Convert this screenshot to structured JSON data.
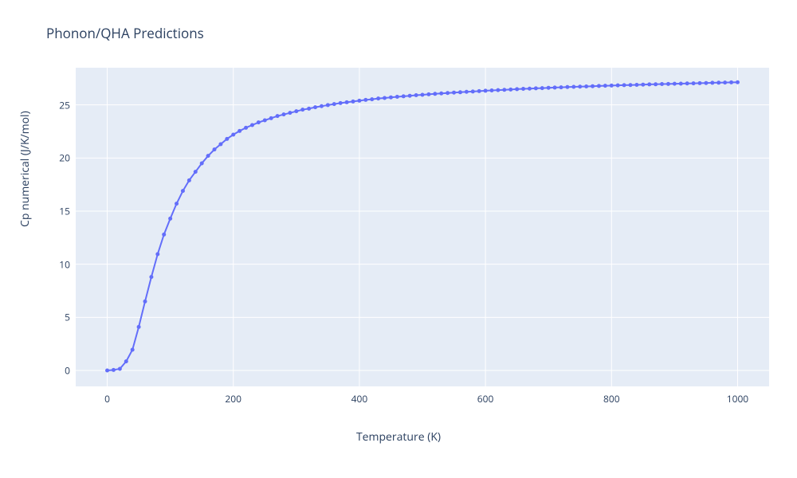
{
  "chart": {
    "type": "line",
    "title": "Phonon/QHA Predictions",
    "title_fontsize": 17,
    "title_color": "#2a3f5f",
    "background_color": "#ffffff",
    "plot_background_color": "#e5ecf6",
    "grid_color": "#ffffff",
    "xlabel": "Temperature (K)",
    "ylabel": "Cp numerical (J/K/mol)",
    "label_fontsize": 14,
    "label_color": "#2a3f5f",
    "tick_fontsize": 12,
    "tick_color": "#2a3f5f",
    "xlim": [
      -50,
      1050
    ],
    "ylim": [
      -1.5,
      28.5
    ],
    "xticks": [
      0,
      200,
      400,
      600,
      800,
      1000
    ],
    "yticks": [
      0,
      5,
      10,
      15,
      20,
      25
    ],
    "line_color": "#636efa",
    "line_width": 2,
    "marker_style": "circle",
    "marker_size": 5,
    "marker_color": "#636efa",
    "x": [
      0,
      10,
      20,
      30,
      40,
      50,
      60,
      70,
      80,
      90,
      100,
      110,
      120,
      130,
      140,
      150,
      160,
      170,
      180,
      190,
      200,
      210,
      220,
      230,
      240,
      250,
      260,
      270,
      280,
      290,
      300,
      310,
      320,
      330,
      340,
      350,
      360,
      370,
      380,
      390,
      400,
      410,
      420,
      430,
      440,
      450,
      460,
      470,
      480,
      490,
      500,
      510,
      520,
      530,
      540,
      550,
      560,
      570,
      580,
      590,
      600,
      610,
      620,
      630,
      640,
      650,
      660,
      670,
      680,
      690,
      700,
      710,
      720,
      730,
      740,
      750,
      760,
      770,
      780,
      790,
      800,
      810,
      820,
      830,
      840,
      850,
      860,
      870,
      880,
      890,
      900,
      910,
      920,
      930,
      940,
      950,
      960,
      970,
      980,
      990,
      1000
    ],
    "y": [
      0,
      0.05,
      0.15,
      0.85,
      1.95,
      4.1,
      6.5,
      8.8,
      10.95,
      12.8,
      14.3,
      15.7,
      16.9,
      17.9,
      18.7,
      19.5,
      20.2,
      20.8,
      21.3,
      21.8,
      22.2,
      22.55,
      22.85,
      23.1,
      23.35,
      23.55,
      23.75,
      23.95,
      24.1,
      24.25,
      24.4,
      24.55,
      24.65,
      24.78,
      24.88,
      24.98,
      25.08,
      25.17,
      25.25,
      25.32,
      25.4,
      25.47,
      25.53,
      25.6,
      25.65,
      25.71,
      25.76,
      25.81,
      25.86,
      25.91,
      25.95,
      26.0,
      26.04,
      26.08,
      26.12,
      26.16,
      26.19,
      26.23,
      26.26,
      26.3,
      26.33,
      26.36,
      26.39,
      26.42,
      26.45,
      26.48,
      26.51,
      26.53,
      26.56,
      26.58,
      26.61,
      26.63,
      26.65,
      26.68,
      26.7,
      26.72,
      26.74,
      26.76,
      26.78,
      26.8,
      26.82,
      26.84,
      26.86,
      26.87,
      26.89,
      26.91,
      26.93,
      26.94,
      26.96,
      26.97,
      26.99,
      27.0,
      27.02,
      27.03,
      27.05,
      27.06,
      27.08,
      27.09,
      27.1,
      27.12,
      27.13
    ]
  }
}
